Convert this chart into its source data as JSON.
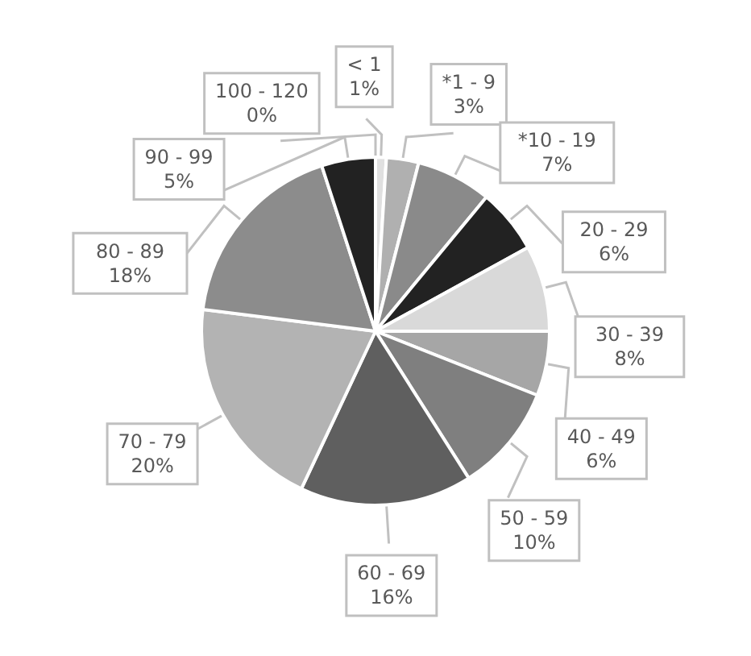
{
  "chart_data": {
    "type": "pie",
    "categories": [
      "< 1",
      "*1 - 9",
      "*10 - 19",
      "20 - 29",
      "30 - 39",
      "40 - 49",
      "50 - 59",
      "60 - 69",
      "70 - 79",
      "80 - 89",
      "90 - 99",
      "100 - 120"
    ],
    "values": [
      1,
      3,
      7,
      6,
      8,
      6,
      10,
      16,
      20,
      18,
      5,
      0
    ],
    "value_labels": [
      "1%",
      "3%",
      "7%",
      "6%",
      "8%",
      "6%",
      "10%",
      "16%",
      "20%",
      "18%",
      "5%",
      "0%"
    ],
    "colors": [
      "#e0e0e0",
      "#b0b0b0",
      "#8a8a8a",
      "#222222",
      "#d9d9d9",
      "#a6a6a6",
      "#7f7f7f",
      "#5f5f5f",
      "#b3b3b3",
      "#8c8c8c",
      "#222222",
      "#d9d9d9"
    ]
  }
}
